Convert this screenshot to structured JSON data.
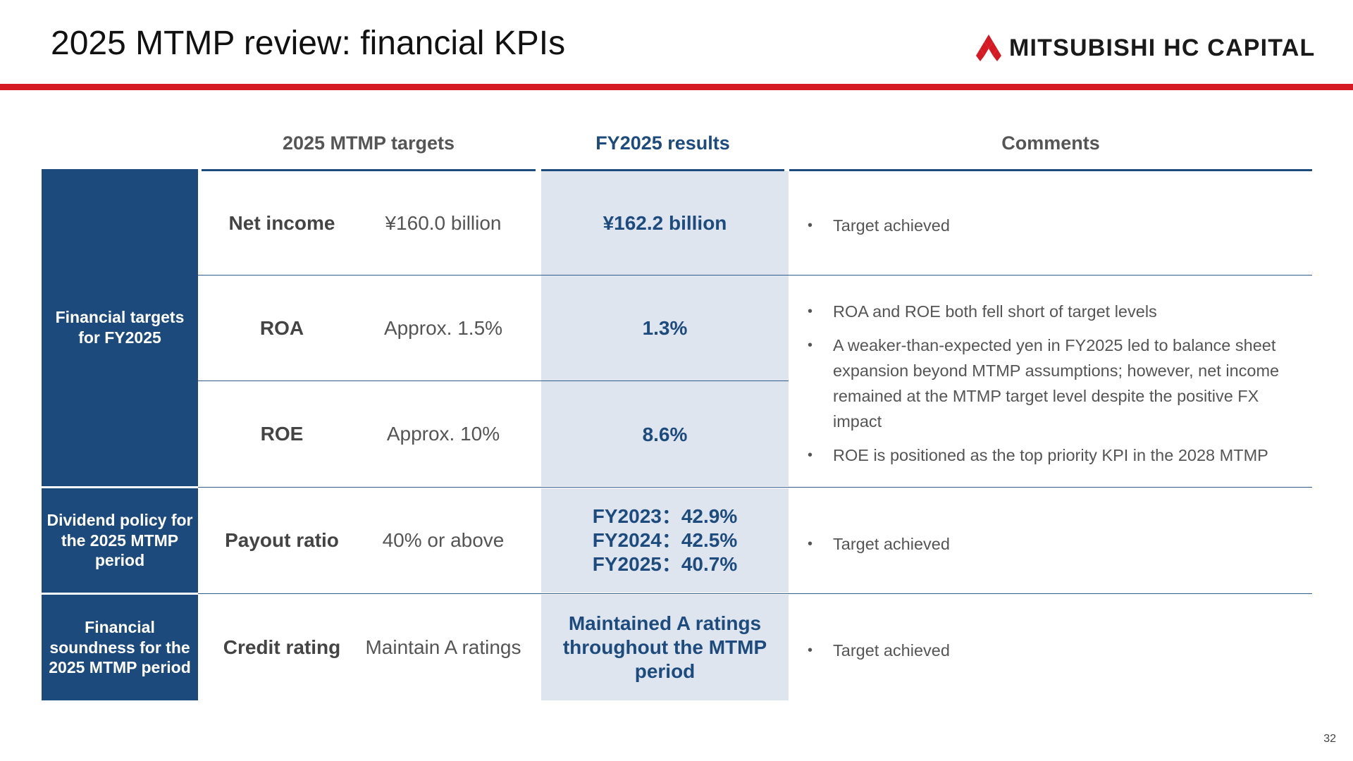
{
  "title": "2025 MTMP review: financial KPIs",
  "logo": {
    "text": "MITSUBISHI HC CAPITAL",
    "icon": "three-diamonds-icon",
    "color": "#d51a23"
  },
  "columns": {
    "targets": "2025 MTMP targets",
    "results": "FY2025 results",
    "comments": "Comments"
  },
  "groups": [
    {
      "label": "Financial targets for FY2025"
    },
    {
      "label": "Dividend policy for the 2025 MTMP period"
    },
    {
      "label": "Financial soundness for the 2025 MTMP period"
    }
  ],
  "rows": [
    {
      "kpi": "Net income",
      "target": "¥160.0 billion",
      "result": "¥162.2 billion"
    },
    {
      "kpi": "ROA",
      "target": "Approx. 1.5%",
      "result": "1.3%"
    },
    {
      "kpi": "ROE",
      "target": "Approx. 10%",
      "result": "8.6%"
    },
    {
      "kpi": "Payout ratio",
      "target": "40% or above",
      "result_lines": [
        "FY2023：42.9%",
        "FY2024：42.5%",
        "FY2025：40.7%"
      ]
    },
    {
      "kpi": "Credit rating",
      "target": "Maintain A ratings",
      "result": "Maintained A ratings throughout the MTMP period"
    }
  ],
  "comments": {
    "net_income": [
      "Target achieved"
    ],
    "roa_roe": [
      "ROA and ROE both fell short of target levels",
      "A weaker-than-expected yen in FY2025 led to balance sheet expansion beyond MTMP assumptions; however, net income remained at the MTMP target level despite the positive FX impact",
      "ROE is positioned as the top priority KPI in the 2028 MTMP"
    ],
    "payout": [
      "Target achieved"
    ],
    "credit": [
      "Target achieved"
    ]
  },
  "bullet": "•",
  "page_number": "32",
  "colors": {
    "accent_red": "#d51a23",
    "navy": "#1c4a7c",
    "result_bg": "#dee5ee"
  }
}
